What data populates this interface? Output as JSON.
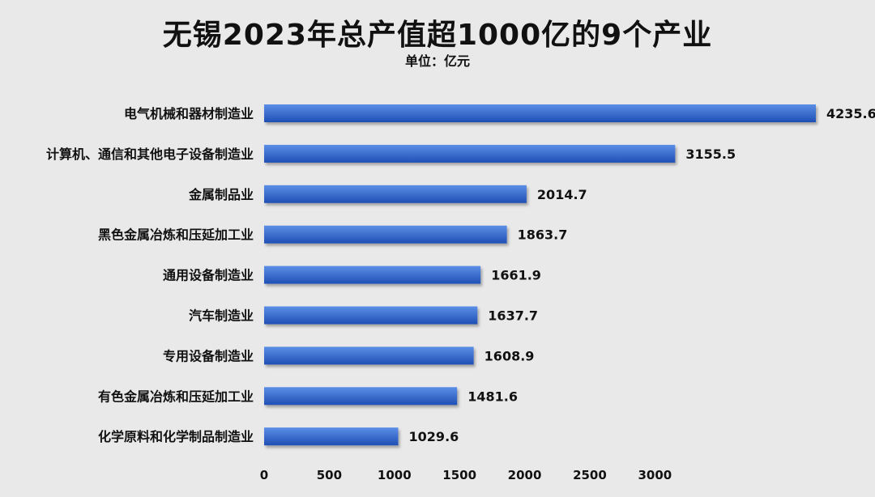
{
  "header": {
    "title": "无锡2023年总产值超1000亿的9个产业",
    "subtitle": "单位：亿元"
  },
  "colors": {
    "bar_top": "#5b8fe6",
    "bar_bottom": "#1f4fb5",
    "text": "#111111",
    "background": "#e9e9e9"
  },
  "chart_data": {
    "type": "bar",
    "orientation": "horizontal",
    "title": "无锡2023年总产值超1000亿的9个产业",
    "subtitle": "单位：亿元",
    "categories": [
      "电气机械和器材制造业",
      "计算机、通信和其他电子设备制造业",
      "金属制品业",
      "黑色金属冶炼和压延加工业",
      "通用设备制造业",
      "汽车制造业",
      "专用设备制造业",
      "有色金属冶炼和压延加工业",
      "化学原料和化学制品制造业"
    ],
    "values": [
      4235.6,
      3155.5,
      2014.7,
      1863.7,
      1661.9,
      1637.7,
      1608.9,
      1481.6,
      1029.6
    ],
    "value_labels": [
      "4235.6",
      "3155.5",
      "2014.7",
      "1863.7",
      "1661.9",
      "1637.7",
      "1608.9",
      "1481.6",
      "1029.6"
    ],
    "x_ticks": [
      "0",
      "500",
      "1000",
      "1500",
      "2000",
      "2500",
      "3000"
    ],
    "xlim": [
      0,
      4235.6
    ],
    "grid": false,
    "legend": "none"
  }
}
